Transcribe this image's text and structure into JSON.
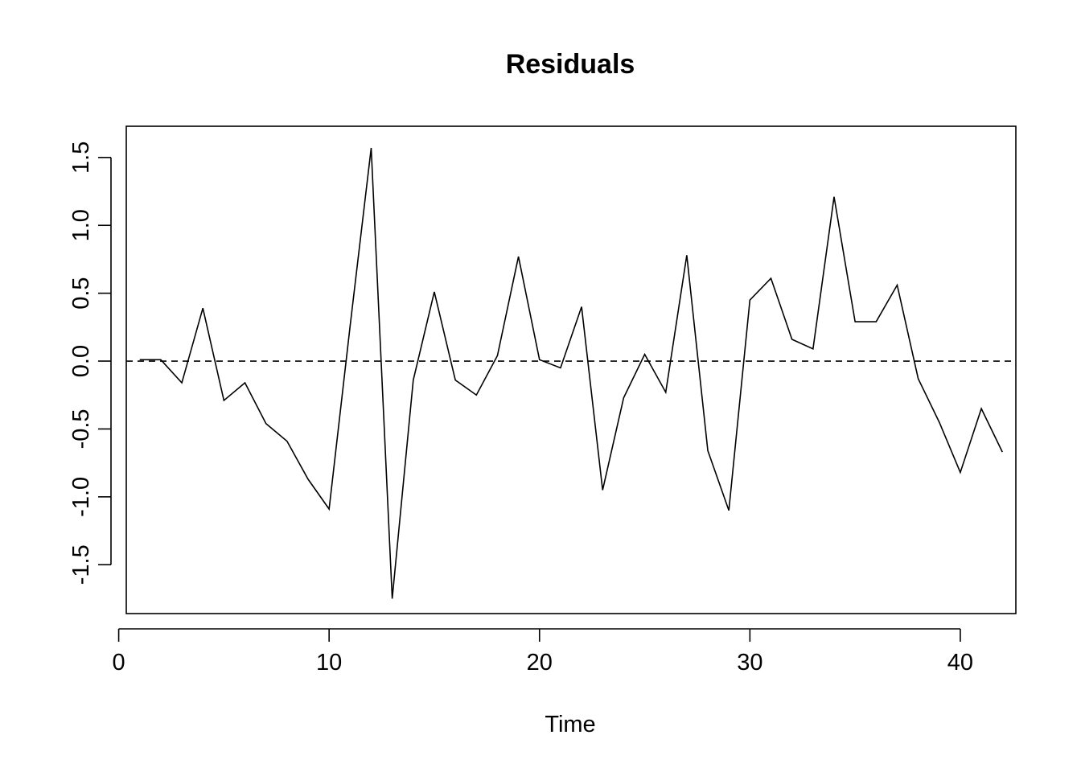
{
  "chart_data": {
    "type": "line",
    "title": "Residuals",
    "xlabel": "Time",
    "ylabel": "",
    "xlim": [
      0.36,
      42.64
    ],
    "ylim": [
      -1.86,
      1.73
    ],
    "xticks": [
      0,
      10,
      20,
      30,
      40
    ],
    "xtick_labels": [
      "0",
      "10",
      "20",
      "30",
      "40"
    ],
    "yticks": [
      -1.5,
      -1.0,
      -0.5,
      0.0,
      0.5,
      1.0,
      1.5
    ],
    "ytick_labels": [
      "-1.5",
      "-1.0",
      "-0.5",
      "0.0",
      "0.5",
      "1.0",
      "1.5"
    ],
    "reference_line": {
      "y": 0,
      "style": "dashed"
    },
    "grid": false,
    "series": [
      {
        "x": [
          1,
          2,
          3,
          4,
          5,
          6,
          7,
          8,
          9,
          10,
          11,
          12,
          13,
          14,
          15,
          16,
          17,
          18,
          19,
          20,
          21,
          22,
          23,
          24,
          25,
          26,
          27,
          28,
          29,
          30,
          31,
          32,
          33,
          34,
          35,
          36,
          37,
          38,
          39,
          40,
          41,
          42
        ],
        "values": [
          0.01,
          0.01,
          -0.16,
          0.39,
          -0.29,
          -0.16,
          -0.46,
          -0.59,
          -0.87,
          -1.09,
          0.26,
          1.57,
          -1.75,
          -0.14,
          0.51,
          -0.14,
          -0.25,
          0.04,
          0.77,
          0.01,
          -0.05,
          0.4,
          -0.95,
          -0.27,
          0.05,
          -0.23,
          0.78,
          -0.66,
          -1.1,
          0.45,
          0.61,
          0.16,
          0.09,
          1.21,
          0.29,
          0.29,
          0.56,
          -0.13,
          -0.45,
          -0.82,
          -0.35,
          -0.67
        ]
      }
    ]
  }
}
